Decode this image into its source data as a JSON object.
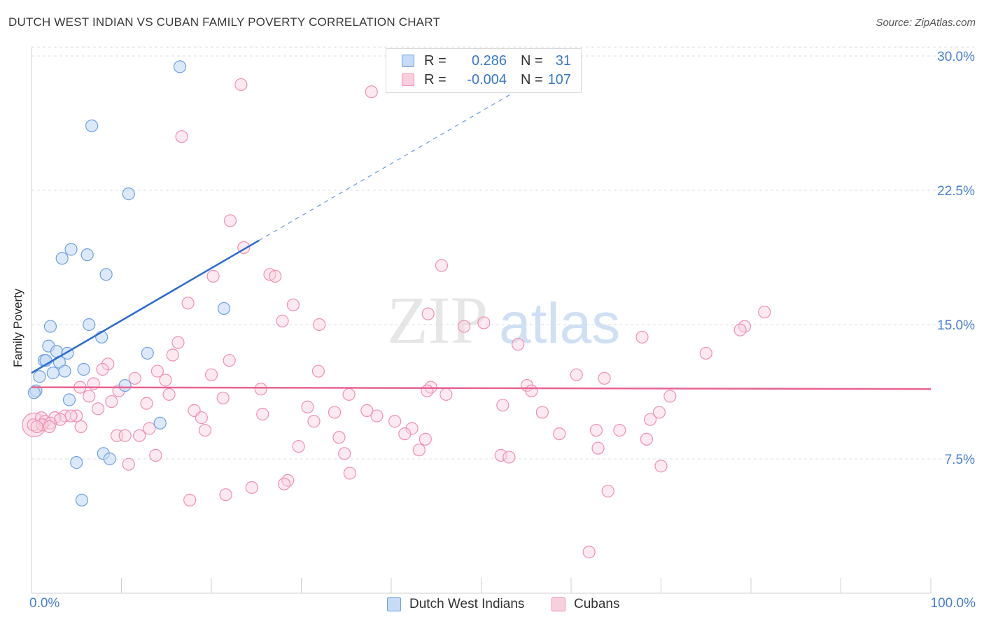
{
  "title": "DUTCH WEST INDIAN VS CUBAN FAMILY POVERTY CORRELATION CHART",
  "source": "Source: ZipAtlas.com",
  "watermark": {
    "zip": "ZIP",
    "atlas": "atlas"
  },
  "legend": {
    "rows": [
      {
        "r_label": "R =",
        "r_value": "0.286",
        "n_label": "N =",
        "n_value": "31"
      },
      {
        "r_label": "R =",
        "r_value": "-0.004",
        "n_label": "N =",
        "n_value": "107"
      }
    ]
  },
  "bottom_legend": {
    "series1": "Dutch West Indians",
    "series2": "Cubans"
  },
  "chart_data": {
    "type": "scatter",
    "xlabel": "",
    "ylabel": "Family Poverty",
    "xlim": [
      0,
      100
    ],
    "ylim": [
      0,
      30.5
    ],
    "x_tick_labels": [
      "0.0%",
      "100.0%"
    ],
    "y_ticks": [
      7.5,
      15.0,
      22.5,
      30.0
    ],
    "y_tick_labels": [
      "7.5%",
      "15.0%",
      "22.5%",
      "30.0%"
    ],
    "colors": {
      "series1": "#6fa0e0",
      "series1_fill": "#c5dbf6",
      "series1_line": "#2a6ccf",
      "series2": "#ef90b0",
      "series2_fill": "#f8d0dd",
      "series2_line": "#e8648f",
      "axis_text": "#4a7fcf"
    },
    "series": [
      {
        "name": "Dutch West Indians",
        "trend": {
          "x0": 0,
          "y0": 12.3,
          "x1": 25.3,
          "y1": 19.7,
          "dash_to_x": 56.5,
          "dash_to_y": 28.8
        },
        "points": [
          [
            16.5,
            29.4
          ],
          [
            6.7,
            26.1
          ],
          [
            10.8,
            22.3
          ],
          [
            4.4,
            19.2
          ],
          [
            6.2,
            18.9
          ],
          [
            3.4,
            18.7
          ],
          [
            8.3,
            17.8
          ],
          [
            21.4,
            15.9
          ],
          [
            6.4,
            15.0
          ],
          [
            2.1,
            14.9
          ],
          [
            7.8,
            14.3
          ],
          [
            1.9,
            13.8
          ],
          [
            2.8,
            13.5
          ],
          [
            4.0,
            13.4
          ],
          [
            12.9,
            13.4
          ],
          [
            1.4,
            13.0
          ],
          [
            1.6,
            13.0
          ],
          [
            3.1,
            12.9
          ],
          [
            5.8,
            12.5
          ],
          [
            3.7,
            12.4
          ],
          [
            2.4,
            12.3
          ],
          [
            0.9,
            12.1
          ],
          [
            10.4,
            11.6
          ],
          [
            0.5,
            11.3
          ],
          [
            0.3,
            11.2
          ],
          [
            4.2,
            10.8
          ],
          [
            14.3,
            9.5
          ],
          [
            8.0,
            7.8
          ],
          [
            8.7,
            7.5
          ],
          [
            5.0,
            7.3
          ],
          [
            5.6,
            5.2
          ]
        ]
      },
      {
        "name": "Cubans",
        "trend": {
          "x0": 0,
          "y0": 11.5,
          "x1": 100,
          "y1": 11.4
        },
        "points": [
          [
            23.3,
            28.4
          ],
          [
            37.8,
            28.0
          ],
          [
            16.7,
            25.5
          ],
          [
            22.1,
            20.8
          ],
          [
            23.6,
            19.3
          ],
          [
            45.6,
            18.3
          ],
          [
            26.5,
            17.8
          ],
          [
            20.2,
            17.7
          ],
          [
            27.1,
            17.7
          ],
          [
            17.4,
            16.2
          ],
          [
            29.1,
            16.1
          ],
          [
            81.5,
            15.7
          ],
          [
            44.1,
            15.6
          ],
          [
            27.9,
            15.2
          ],
          [
            50.3,
            15.1
          ],
          [
            32.0,
            15.0
          ],
          [
            79.3,
            14.9
          ],
          [
            48.1,
            14.9
          ],
          [
            78.8,
            14.7
          ],
          [
            67.9,
            14.3
          ],
          [
            16.3,
            14.0
          ],
          [
            54.1,
            13.9
          ],
          [
            75.0,
            13.4
          ],
          [
            15.7,
            13.3
          ],
          [
            22.0,
            13.0
          ],
          [
            8.5,
            12.8
          ],
          [
            7.9,
            12.5
          ],
          [
            14.0,
            12.4
          ],
          [
            31.9,
            12.4
          ],
          [
            60.6,
            12.2
          ],
          [
            20.0,
            12.2
          ],
          [
            11.5,
            12.0
          ],
          [
            63.7,
            12.0
          ],
          [
            14.9,
            11.9
          ],
          [
            6.9,
            11.7
          ],
          [
            55.1,
            11.6
          ],
          [
            44.4,
            11.5
          ],
          [
            5.4,
            11.5
          ],
          [
            25.5,
            11.4
          ],
          [
            55.6,
            11.3
          ],
          [
            44.0,
            11.3
          ],
          [
            9.7,
            11.3
          ],
          [
            46.1,
            11.1
          ],
          [
            35.3,
            11.1
          ],
          [
            15.3,
            11.1
          ],
          [
            71.0,
            11.0
          ],
          [
            6.4,
            11.0
          ],
          [
            21.3,
            10.9
          ],
          [
            8.9,
            10.7
          ],
          [
            12.8,
            10.6
          ],
          [
            52.4,
            10.5
          ],
          [
            30.7,
            10.4
          ],
          [
            7.4,
            10.3
          ],
          [
            18.1,
            10.2
          ],
          [
            37.3,
            10.2
          ],
          [
            33.7,
            10.1
          ],
          [
            56.8,
            10.1
          ],
          [
            69.8,
            10.1
          ],
          [
            25.7,
            10.0
          ],
          [
            5.0,
            9.9
          ],
          [
            3.7,
            9.9
          ],
          [
            4.4,
            9.9
          ],
          [
            38.4,
            9.9
          ],
          [
            1.1,
            9.8
          ],
          [
            2.6,
            9.8
          ],
          [
            18.9,
            9.8
          ],
          [
            3.2,
            9.7
          ],
          [
            68.8,
            9.7
          ],
          [
            1.5,
            9.6
          ],
          [
            31.4,
            9.6
          ],
          [
            40.4,
            9.6
          ],
          [
            2.1,
            9.5
          ],
          [
            0.2,
            9.4
          ],
          [
            1.2,
            9.4
          ],
          [
            0.6,
            9.3
          ],
          [
            2.0,
            9.3
          ],
          [
            5.5,
            9.3
          ],
          [
            42.3,
            9.2
          ],
          [
            13.1,
            9.2
          ],
          [
            62.8,
            9.1
          ],
          [
            65.4,
            9.1
          ],
          [
            19.3,
            9.1
          ],
          [
            41.5,
            8.9
          ],
          [
            58.7,
            8.9
          ],
          [
            9.5,
            8.8
          ],
          [
            10.4,
            8.8
          ],
          [
            12.0,
            8.8
          ],
          [
            34.2,
            8.7
          ],
          [
            43.8,
            8.6
          ],
          [
            68.4,
            8.6
          ],
          [
            29.7,
            8.2
          ],
          [
            63.0,
            8.1
          ],
          [
            43.1,
            8.0
          ],
          [
            34.8,
            7.8
          ],
          [
            13.8,
            7.7
          ],
          [
            52.2,
            7.7
          ],
          [
            53.1,
            7.6
          ],
          [
            10.8,
            7.2
          ],
          [
            70.0,
            7.1
          ],
          [
            35.4,
            6.7
          ],
          [
            28.5,
            6.3
          ],
          [
            28.1,
            6.1
          ],
          [
            24.5,
            5.9
          ],
          [
            64.1,
            5.7
          ],
          [
            21.6,
            5.5
          ],
          [
            17.6,
            5.2
          ],
          [
            62.0,
            2.3
          ]
        ]
      }
    ]
  }
}
